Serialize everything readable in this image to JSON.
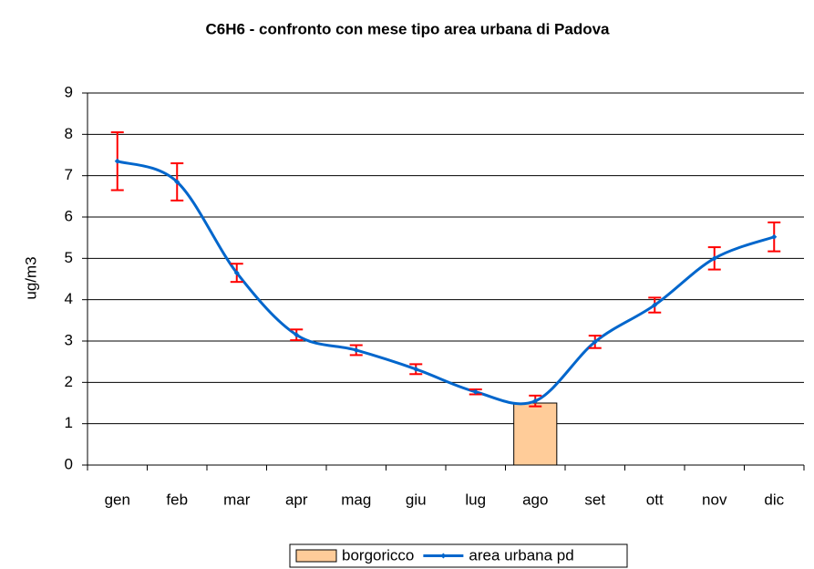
{
  "chart_data": {
    "type": "combo",
    "title": "C6H6 - confronto con mese tipo area urbana di Padova",
    "y_label": "ug/m3",
    "categories": [
      "gen",
      "feb",
      "mar",
      "apr",
      "mag",
      "giu",
      "lug",
      "ago",
      "set",
      "ott",
      "nov",
      "dic"
    ],
    "series": [
      {
        "name": "borgoricco",
        "type": "bar",
        "color": "#ffcc99",
        "values": [
          null,
          null,
          null,
          null,
          null,
          null,
          null,
          1.5,
          null,
          null,
          null,
          null
        ]
      },
      {
        "name": "area urbana pd",
        "type": "line",
        "color": "#0066cc",
        "error_color": "#ff0000",
        "values": [
          7.35,
          6.85,
          4.65,
          3.15,
          2.78,
          2.32,
          1.77,
          1.55,
          2.98,
          3.87,
          5.0,
          5.52
        ],
        "errors": [
          0.7,
          0.45,
          0.22,
          0.13,
          0.12,
          0.12,
          0.06,
          0.13,
          0.15,
          0.18,
          0.27,
          0.35
        ]
      }
    ],
    "ylim": [
      0,
      9
    ],
    "yticks": [
      0,
      1,
      2,
      3,
      4,
      5,
      6,
      7,
      8,
      9
    ],
    "grid": true,
    "legend": "bottom"
  }
}
